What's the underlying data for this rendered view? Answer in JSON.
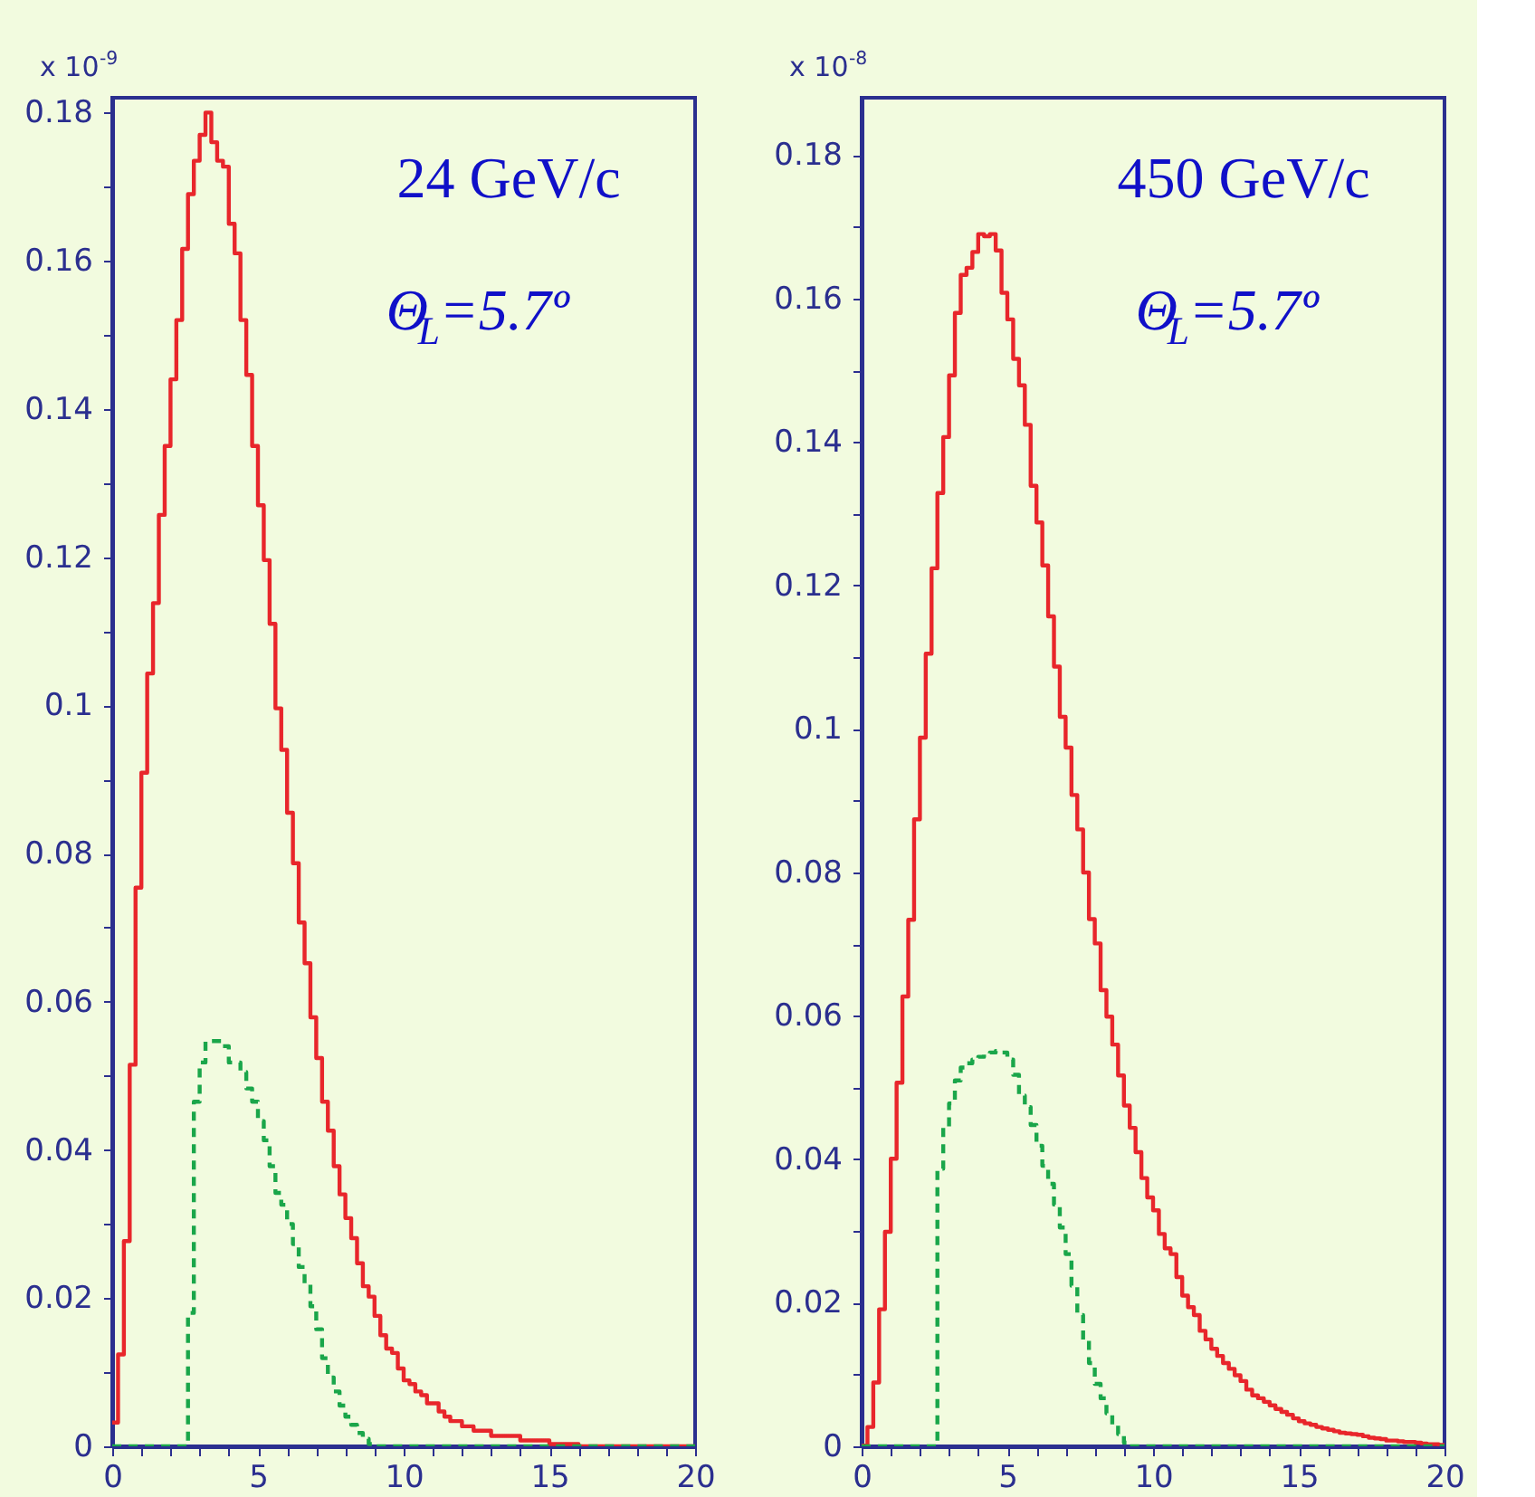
{
  "chart_data": [
    {
      "type": "histogram",
      "annotations": [
        "x 10$^{-9}$",
        "24 GeV/c",
        "Θ$_{L}$=5.7º"
      ],
      "xlim": [
        0,
        20
      ],
      "ylim": [
        0,
        0.182
      ],
      "xticks": [
        0,
        {
          "value": 1,
          "label": null
        },
        {
          "value": 2,
          "label": null
        },
        {
          "value": 3,
          "label": null
        },
        {
          "value": 4,
          "label": null
        },
        5,
        {
          "value": 6,
          "label": null
        },
        {
          "value": 7,
          "label": null
        },
        {
          "value": 8,
          "label": null
        },
        {
          "value": 9,
          "label": null
        },
        10,
        {
          "value": 11,
          "label": null
        },
        {
          "value": 12,
          "label": null
        },
        {
          "value": 13,
          "label": null
        },
        {
          "value": 14,
          "label": null
        },
        15,
        {
          "value": 16,
          "label": null
        },
        {
          "value": 17,
          "label": null
        },
        {
          "value": 18,
          "label": null
        },
        {
          "value": 19,
          "label": null
        },
        20
      ],
      "yticks": [
        0,
        {
          "value": 0.01,
          "label": null
        },
        0.02,
        {
          "value": 0.03,
          "label": null
        },
        0.04,
        {
          "value": 0.05,
          "label": null
        },
        0.06,
        {
          "value": 0.07,
          "label": null
        },
        0.08,
        {
          "value": 0.09,
          "label": null
        },
        0.1,
        {
          "value": 0.11,
          "label": null
        },
        0.12,
        {
          "value": 0.13,
          "label": null
        },
        0.14,
        {
          "value": 0.15,
          "label": null
        },
        0.16,
        {
          "value": 0.17,
          "label": null
        },
        0.18
      ],
      "bins": [
        0,
        0.2,
        0.4,
        0.6,
        0.8,
        1,
        1.2,
        1.4,
        1.6,
        1.8,
        2,
        2.2,
        2.4,
        2.6,
        2.8,
        3,
        3.2,
        3.4,
        3.6,
        3.8,
        4,
        4.2,
        4.4,
        4.6,
        4.8,
        5,
        5.2,
        5.4,
        5.6,
        5.8,
        6,
        6.2,
        6.4,
        6.6,
        6.8,
        7,
        7.2,
        7.4,
        7.6,
        7.8,
        8,
        8.2,
        8.4,
        8.6,
        8.8,
        9,
        9.2,
        9.4,
        9.6,
        9.8,
        10,
        10.2,
        10.4,
        10.6,
        10.8,
        11,
        11.2,
        11.4,
        11.6,
        11.8,
        12,
        12.2,
        12.4,
        12.6,
        12.8,
        13,
        13.2,
        13.4,
        13.6,
        13.8,
        14,
        14.2,
        14.4,
        14.6,
        14.8,
        15,
        15.2,
        15.4,
        15.6,
        15.8,
        16,
        16.2,
        16.4,
        16.6,
        16.8,
        17,
        17.2,
        17.4,
        17.6,
        17.8,
        18,
        18.2,
        18.4,
        18.6,
        18.8,
        19,
        19.2,
        19.4,
        19.6,
        19.8,
        20
      ],
      "series": [
        {
          "color": "#e8262b",
          "line_style": "solid",
          "values": [
            0.0032,
            0.0124,
            0.0277,
            0.0515,
            0.0754,
            0.0909,
            0.1043,
            0.1138,
            0.1257,
            0.135,
            0.144,
            0.152,
            0.1616,
            0.169,
            0.1735,
            0.177,
            0.18,
            0.176,
            0.1735,
            0.1727,
            0.165,
            0.161,
            0.152,
            0.1446,
            0.135,
            0.127,
            0.1196,
            0.111,
            0.0996,
            0.094,
            0.0855,
            0.0787,
            0.0707,
            0.0652,
            0.0579,
            0.0524,
            0.0465,
            0.0426,
            0.0378,
            0.034,
            0.0308,
            0.0281,
            0.0247,
            0.0216,
            0.0202,
            0.0176,
            0.015,
            0.0132,
            0.0126,
            0.0105,
            0.0089,
            0.0084,
            0.0074,
            0.0069,
            0.0058,
            0.0058,
            0.0047,
            0.004,
            0.0034,
            0.0034,
            0.0027,
            0.0027,
            0.0021,
            0.0021,
            0.0021,
            0.0014,
            0.0014,
            0.0014,
            0.0014,
            0.0014,
            0.0008,
            0.0008,
            0.0008,
            0.0008,
            0.0008,
            0.0003,
            0.0003,
            0.0003,
            0.0003,
            0.0003,
            0,
            0,
            0,
            0,
            0,
            0,
            0,
            0,
            0,
            0,
            0,
            0,
            0,
            0,
            0,
            0,
            0,
            0,
            0,
            0
          ]
        },
        {
          "color": "#1aa64a",
          "line_style": "dashed",
          "values": [
            0,
            0,
            0,
            0,
            0,
            0,
            0,
            0,
            0,
            0,
            0,
            0,
            0,
            0.018,
            0.0465,
            0.0518,
            0.0547,
            0.0547,
            0.0547,
            0.054,
            0.0518,
            0.0518,
            0.0505,
            0.0483,
            0.0465,
            0.0439,
            0.0413,
            0.0378,
            0.0342,
            0.0326,
            0.03,
            0.0273,
            0.0242,
            0.022,
            0.0189,
            0.0158,
            0.0119,
            0.0093,
            0.0074,
            0.0055,
            0.004,
            0.0029,
            0.0018,
            0.001,
            0.0003,
            0,
            0,
            0,
            0,
            0,
            0,
            0,
            0,
            0,
            0,
            0,
            0,
            0,
            0,
            0,
            0,
            0,
            0,
            0,
            0,
            0,
            0,
            0,
            0,
            0,
            0,
            0,
            0,
            0,
            0,
            0,
            0,
            0,
            0,
            0,
            0,
            0,
            0,
            0,
            0,
            0,
            0,
            0,
            0,
            0,
            0,
            0,
            0,
            0,
            0,
            0,
            0,
            0,
            0,
            0
          ]
        }
      ]
    },
    {
      "type": "histogram",
      "annotations": [
        "x 10$^{-8}$",
        "450 GeV/c",
        "Θ$_{L}$=5.7º"
      ],
      "xlim": [
        0,
        20
      ],
      "ylim": [
        0,
        0.188
      ],
      "xticks": [
        0,
        {
          "value": 1,
          "label": null
        },
        {
          "value": 2,
          "label": null
        },
        {
          "value": 3,
          "label": null
        },
        {
          "value": 4,
          "label": null
        },
        5,
        {
          "value": 6,
          "label": null
        },
        {
          "value": 7,
          "label": null
        },
        {
          "value": 8,
          "label": null
        },
        {
          "value": 9,
          "label": null
        },
        10,
        {
          "value": 11,
          "label": null
        },
        {
          "value": 12,
          "label": null
        },
        {
          "value": 13,
          "label": null
        },
        {
          "value": 14,
          "label": null
        },
        15,
        {
          "value": 16,
          "label": null
        },
        {
          "value": 17,
          "label": null
        },
        {
          "value": 18,
          "label": null
        },
        {
          "value": 19,
          "label": null
        },
        20
      ],
      "yticks": [
        0,
        {
          "value": 0.01,
          "label": null
        },
        0.02,
        {
          "value": 0.03,
          "label": null
        },
        0.04,
        {
          "value": 0.05,
          "label": null
        },
        0.06,
        {
          "value": 0.07,
          "label": null
        },
        0.08,
        {
          "value": 0.09,
          "label": null
        },
        0.1,
        {
          "value": 0.11,
          "label": null
        },
        0.12,
        {
          "value": 0.13,
          "label": null
        },
        0.14,
        {
          "value": 0.15,
          "label": null
        },
        0.16,
        {
          "value": 0.17,
          "label": null
        },
        0.18
      ],
      "bins": [
        0,
        0.2,
        0.4,
        0.6,
        0.8,
        1,
        1.2,
        1.4,
        1.6,
        1.8,
        2,
        2.2,
        2.4,
        2.6,
        2.8,
        3,
        3.2,
        3.4,
        3.6,
        3.8,
        4,
        4.2,
        4.4,
        4.6,
        4.8,
        5,
        5.2,
        5.4,
        5.6,
        5.8,
        6,
        6.2,
        6.4,
        6.6,
        6.8,
        7,
        7.2,
        7.4,
        7.6,
        7.8,
        8,
        8.2,
        8.4,
        8.6,
        8.8,
        9,
        9.2,
        9.4,
        9.6,
        9.8,
        10,
        10.2,
        10.4,
        10.6,
        10.8,
        11,
        11.2,
        11.4,
        11.6,
        11.8,
        12,
        12.2,
        12.4,
        12.6,
        12.8,
        13,
        13.2,
        13.4,
        13.6,
        13.8,
        14,
        14.2,
        14.4,
        14.6,
        14.8,
        15,
        15.2,
        15.4,
        15.6,
        15.8,
        16,
        16.2,
        16.4,
        16.6,
        16.8,
        17,
        17.2,
        17.4,
        17.6,
        17.8,
        18,
        18.2,
        18.4,
        18.6,
        18.8,
        19,
        19.2,
        19.4,
        19.6,
        19.8,
        20
      ],
      "series": [
        {
          "color": "#e8262b",
          "line_style": "solid",
          "values": [
            0.0001,
            0.0027,
            0.0089,
            0.0191,
            0.0299,
            0.0401,
            0.0507,
            0.0627,
            0.0734,
            0.0874,
            0.0988,
            0.1105,
            0.1224,
            0.1329,
            0.1407,
            0.1493,
            0.158,
            0.1633,
            0.1643,
            0.1665,
            0.169,
            0.1687,
            0.169,
            0.1667,
            0.1608,
            0.1571,
            0.1516,
            0.1479,
            0.1424,
            0.1339,
            0.1288,
            0.1228,
            0.1157,
            0.1087,
            0.1017,
            0.0974,
            0.0908,
            0.086,
            0.08,
            0.0735,
            0.0701,
            0.0636,
            0.0599,
            0.056,
            0.0517,
            0.0475,
            0.0444,
            0.041,
            0.0374,
            0.0347,
            0.0329,
            0.0296,
            0.0276,
            0.0268,
            0.0236,
            0.021,
            0.0194,
            0.0183,
            0.0161,
            0.0149,
            0.0136,
            0.0126,
            0.0116,
            0.0108,
            0.0099,
            0.0091,
            0.0079,
            0.0071,
            0.0067,
            0.0062,
            0.0057,
            0.0052,
            0.0048,
            0.0044,
            0.0039,
            0.0035,
            0.0032,
            0.003,
            0.0027,
            0.0025,
            0.0023,
            0.0021,
            0.0019,
            0.0018,
            0.0017,
            0.0016,
            0.0014,
            0.0012,
            0.0011,
            0.001,
            0.0008,
            0.0008,
            0.0007,
            0.0006,
            0.0006,
            0.0005,
            0.0004,
            0.0003,
            0.0003,
            0.0002
          ]
        },
        {
          "color": "#1aa64a",
          "line_style": "dashed",
          "values": [
            0,
            0,
            0,
            0,
            0,
            0,
            0,
            0,
            0,
            0,
            0,
            0,
            0,
            0.0387,
            0.0444,
            0.0478,
            0.051,
            0.0528,
            0.0534,
            0.0539,
            0.0543,
            0.0547,
            0.0549,
            0.0551,
            0.0549,
            0.0539,
            0.0518,
            0.0489,
            0.0473,
            0.0448,
            0.0419,
            0.0391,
            0.0366,
            0.0337,
            0.0305,
            0.0268,
            0.0224,
            0.0183,
            0.0149,
            0.0116,
            0.0087,
            0.0067,
            0.0046,
            0.003,
            0.0017,
            0.0005,
            0,
            0,
            0,
            0,
            0,
            0,
            0,
            0,
            0,
            0,
            0,
            0,
            0,
            0,
            0,
            0,
            0,
            0,
            0,
            0,
            0,
            0,
            0,
            0,
            0,
            0,
            0,
            0,
            0,
            0,
            0,
            0,
            0,
            0,
            0,
            0,
            0,
            0,
            0,
            0,
            0,
            0,
            0,
            0,
            0,
            0,
            0,
            0,
            0,
            0,
            0,
            0,
            0,
            0
          ]
        }
      ]
    }
  ]
}
